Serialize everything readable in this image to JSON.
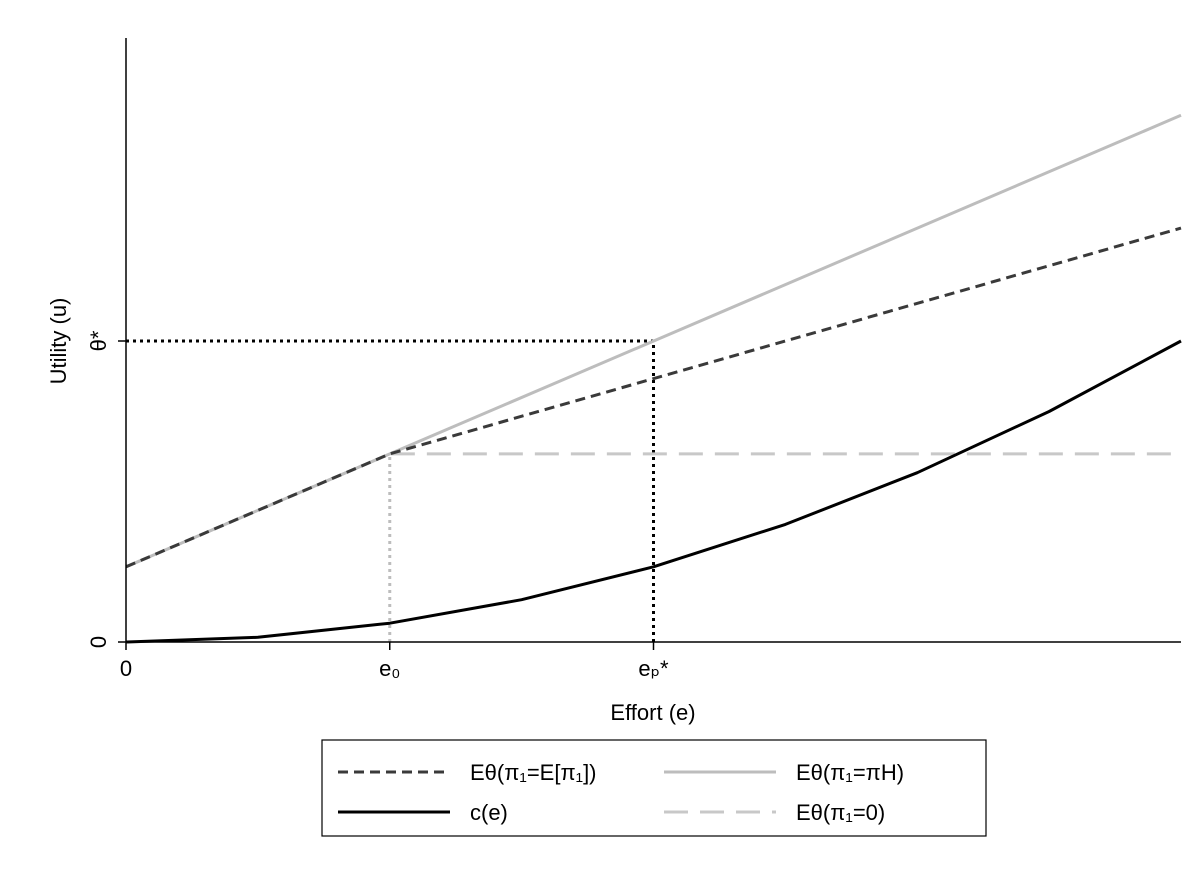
{
  "chart_data": {
    "type": "line",
    "title": "",
    "xlabel": "Effort (e)",
    "ylabel": "Utility (u)",
    "xlim": [
      0,
      4
    ],
    "ylim": [
      0,
      4
    ],
    "grid": false,
    "legend_position": "bottom",
    "x_ticks": [
      {
        "value": 0,
        "label": "0"
      },
      {
        "value": 1,
        "label": "e₀"
      },
      {
        "value": 2,
        "label": "eₚ*"
      }
    ],
    "y_ticks": [
      {
        "value": 0,
        "label": "0"
      },
      {
        "value": 2,
        "label": "θ*"
      }
    ],
    "series": [
      {
        "name": "Eθ(π₁=E[π₁])",
        "style": "dashed",
        "color": "#3a3a3a",
        "x": [
          0,
          1,
          4
        ],
        "y": [
          0.5,
          1.25,
          2.75
        ]
      },
      {
        "name": "Eθ(π₁=πH)",
        "style": "solid",
        "color": "#bdbdbd",
        "x": [
          0,
          1,
          4
        ],
        "y": [
          0.5,
          1.25,
          3.5
        ]
      },
      {
        "name": "c(e)",
        "style": "solid",
        "color": "#000000",
        "x": [
          0,
          0.5,
          1,
          1.5,
          2,
          2.5,
          3,
          3.5,
          4
        ],
        "y": [
          0,
          0.03125,
          0.125,
          0.28125,
          0.5,
          0.78125,
          1.125,
          1.53125,
          2.0
        ]
      },
      {
        "name": "Eθ(π₁=0)",
        "style": "longdash",
        "color": "#c8c8c8",
        "x": [
          0,
          1,
          4
        ],
        "y": [
          0.5,
          1.25,
          1.25
        ]
      }
    ],
    "reference_lines": [
      {
        "kind": "horizontal",
        "y": 2,
        "x_from": 0,
        "x_to": 2,
        "style": "dotted",
        "color": "#000000"
      },
      {
        "kind": "vertical",
        "x": 2,
        "y_from": 0,
        "y_to": 2,
        "style": "dotted",
        "color": "#000000"
      },
      {
        "kind": "vertical",
        "x": 1,
        "y_from": 0,
        "y_to": 1.25,
        "style": "dotted",
        "color": "#bdbdbd"
      }
    ]
  }
}
